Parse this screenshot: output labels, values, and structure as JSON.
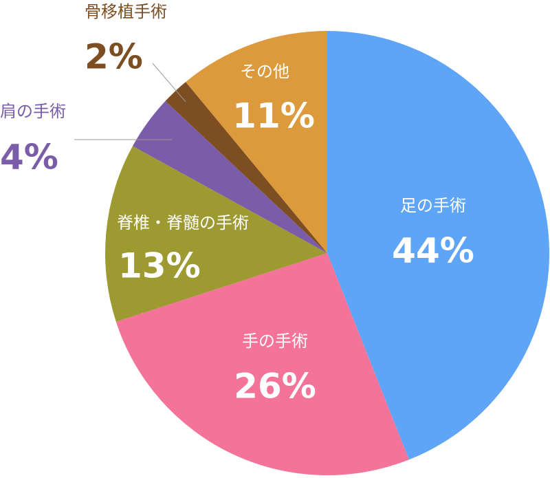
{
  "chart_data": {
    "type": "pie",
    "categories": [
      "足の手術",
      "手の手術",
      "脊椎・脊髄の手術",
      "肩の手術",
      "骨移植手術",
      "その他"
    ],
    "values": [
      44,
      26,
      13,
      4,
      2,
      11
    ],
    "value_labels": [
      "44%",
      "26%",
      "13%",
      "4%",
      "2%",
      "11%"
    ],
    "colors": [
      "#5ea5f7",
      "#f47399",
      "#9c9a31",
      "#7a5ca8",
      "#7c4e22",
      "#dc9a3d"
    ]
  }
}
